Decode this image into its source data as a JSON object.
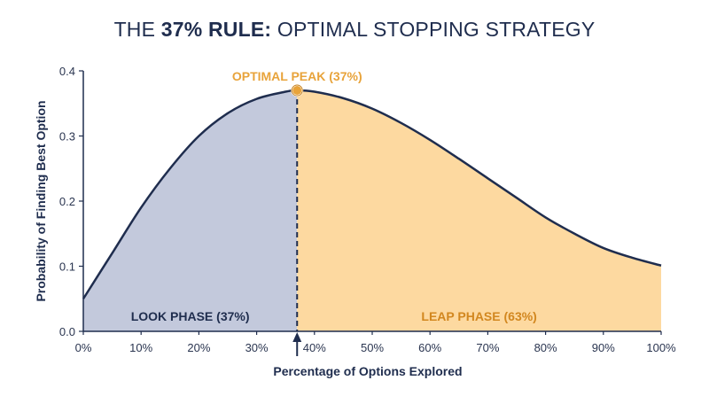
{
  "title": {
    "prefix": "THE ",
    "bold": "37% RULE:",
    "suffix": " OPTIMAL STOPPING STRATEGY"
  },
  "chart_data": {
    "type": "area",
    "title": "THE 37% RULE: OPTIMAL STOPPING STRATEGY",
    "xlabel": "Percentage of Options Explored",
    "ylabel": "Probability of Finding Best Option",
    "xlim": [
      0,
      100
    ],
    "ylim": [
      0,
      0.4
    ],
    "x_ticks": [
      "0%",
      "10%",
      "20%",
      "30%",
      "40%",
      "50%",
      "60%",
      "70%",
      "80%",
      "90%",
      "100%"
    ],
    "x_tick_values": [
      0,
      10,
      20,
      30,
      40,
      50,
      60,
      70,
      80,
      90,
      100
    ],
    "y_ticks": [
      "0.0",
      "0.1",
      "0.2",
      "0.3",
      "0.4"
    ],
    "y_tick_values": [
      0,
      0.1,
      0.2,
      0.3,
      0.4
    ],
    "x": [
      0,
      5,
      10,
      15,
      20,
      25,
      30,
      35,
      37,
      40,
      45,
      50,
      55,
      60,
      65,
      70,
      75,
      80,
      85,
      90,
      95,
      100
    ],
    "y": [
      0.05,
      0.12,
      0.19,
      0.25,
      0.3,
      0.335,
      0.357,
      0.368,
      0.37,
      0.368,
      0.358,
      0.342,
      0.32,
      0.294,
      0.265,
      0.235,
      0.205,
      0.175,
      0.15,
      0.128,
      0.113,
      0.101
    ],
    "peak": {
      "x": 37,
      "y": 0.37,
      "label": "OPTIMAL PEAK (37%)"
    },
    "regions": [
      {
        "label": "LOOK PHASE (37%)",
        "from": 0,
        "to": 37,
        "fill": "#c3c9dc",
        "text_color": "#1f2d4e"
      },
      {
        "label": "LEAP PHASE (63%)",
        "from": 37,
        "to": 100,
        "fill": "#fdd9a0",
        "text_color": "#d2871f"
      }
    ],
    "colors": {
      "line": "#1f2d4e",
      "peak": "#e8a33a",
      "axis": "#1f2d4e"
    },
    "grid": false
  }
}
